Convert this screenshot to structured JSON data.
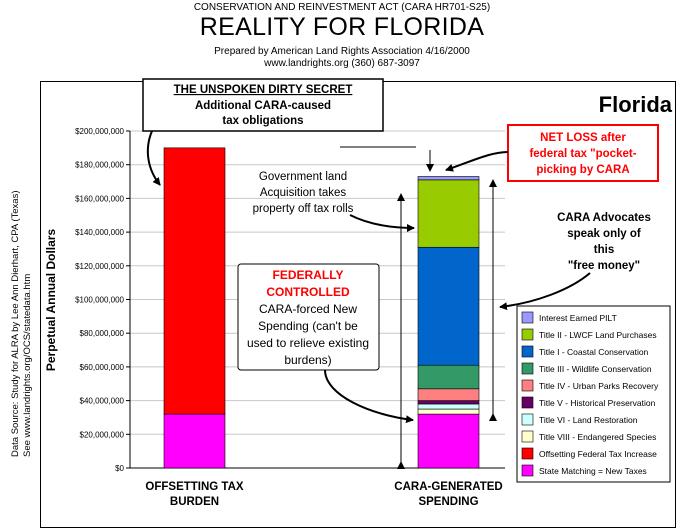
{
  "header": {
    "line1": "CONSERVATION AND REINVESTMENT ACT (CARA HR701-S25)",
    "title": "REALITY FOR FLORIDA",
    "line3": "Prepared by American Land Rights Association 4/16/2000",
    "line4": "www.landrights.org (360) 687-3097"
  },
  "side_note": {
    "line1": "Data Source: Study for ALRA by Lee Ann Dierhart, CPA (Texas)",
    "line2": "See www.landrights.org/OCS/statedata.htm"
  },
  "state": "Florida",
  "callouts": {
    "secret_title": "THE UNSPOKEN DIRTY SECRET",
    "secret_line1": "Additional CARA-caused",
    "secret_line2": "tax obligations",
    "netloss_1": "NET LOSS after",
    "netloss_2": "federal tax \"pocket-",
    "netloss_3": "picking by CARA",
    "gov_1": "Government land",
    "gov_2": "Acquisition takes",
    "gov_3": "property off tax rolls",
    "adv_1": "CARA Advocates",
    "adv_2": "speak only of",
    "adv_3": "this",
    "adv_4": "\"free money\"",
    "fed_1": "FEDERALLY",
    "fed_2": "CONTROLLED",
    "fed_3": "CARA-forced New",
    "fed_4": "Spending (can't be",
    "fed_5": "used to relieve existing",
    "fed_6": "burdens)"
  },
  "chart_data": {
    "type": "bar",
    "stacked": true,
    "ylabel": "Perpetual Annual Dollars",
    "ylim": [
      0,
      200000000
    ],
    "yticks": [
      "$0",
      "$20,000,000",
      "$40,000,000",
      "$60,000,000",
      "$80,000,000",
      "$100,000,000",
      "$120,000,000",
      "$140,000,000",
      "$160,000,000",
      "$180,000,000",
      "$200,000,000"
    ],
    "categories": [
      "OFFSETTING TAX BURDEN",
      "CARA-GENERATED SPENDING"
    ],
    "category_labels": [
      [
        "OFFSETTING TAX",
        "BURDEN"
      ],
      [
        "CARA-GENERATED",
        "SPENDING"
      ]
    ],
    "legend_position": "right",
    "series": [
      {
        "name": "State Matching = New Taxes",
        "color": "#ff00ff",
        "values": [
          32000000,
          32000000
        ]
      },
      {
        "name": "Offsetting Federal Tax Increase",
        "color": "#ff0000",
        "values": [
          158000000,
          0
        ]
      },
      {
        "name": "Title VIII - Endangered Species",
        "color": "#ffffcc",
        "values": [
          0,
          3000000
        ]
      },
      {
        "name": "Title VI - Land Restoration",
        "color": "#ccffff",
        "values": [
          0,
          3000000
        ]
      },
      {
        "name": "Title V - Historical Preservation",
        "color": "#660066",
        "values": [
          0,
          2000000
        ]
      },
      {
        "name": "Title IV - Urban Parks Recovery",
        "color": "#ff8080",
        "values": [
          0,
          7000000
        ]
      },
      {
        "name": "Title III - Wildlife Conservation",
        "color": "#339966",
        "values": [
          0,
          14000000
        ]
      },
      {
        "name": "Title I - Coastal Conservation",
        "color": "#0066cc",
        "values": [
          0,
          70000000
        ]
      },
      {
        "name": "Title II - LWCF Land Purchases",
        "color": "#99cc00",
        "values": [
          0,
          40000000
        ]
      },
      {
        "name": "Interest Earned PILT",
        "color": "#9999ff",
        "values": [
          0,
          2000000
        ]
      }
    ]
  }
}
